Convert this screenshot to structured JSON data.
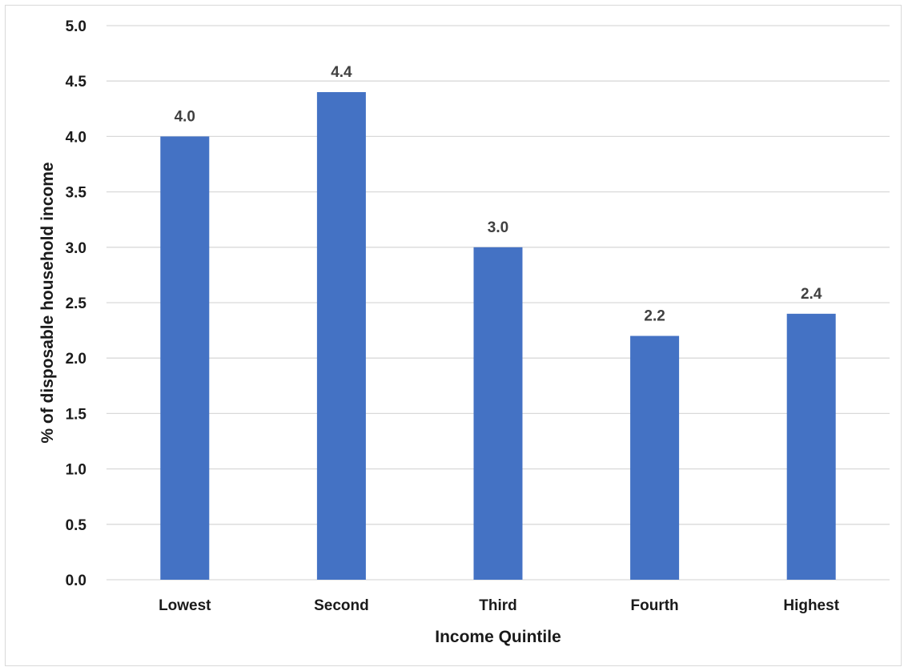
{
  "chart_data": {
    "type": "bar",
    "title": "",
    "xlabel": "Income Quintile",
    "ylabel": "% of disposable household income",
    "categories": [
      "Lowest",
      "Second",
      "Third",
      "Fourth",
      "Highest"
    ],
    "values": [
      4.0,
      4.4,
      3.0,
      2.2,
      2.4
    ],
    "data_labels": [
      "4.0",
      "4.4",
      "3.0",
      "2.2",
      "2.4"
    ],
    "ylim": [
      0,
      5
    ],
    "yticks": [
      "0.0",
      "0.5",
      "1.0",
      "1.5",
      "2.0",
      "2.5",
      "3.0",
      "3.5",
      "4.0",
      "4.5",
      "5.0"
    ],
    "grid": true,
    "legend": "none",
    "bar_color": "#4472C4",
    "grid_color": "#d9d9d9"
  }
}
